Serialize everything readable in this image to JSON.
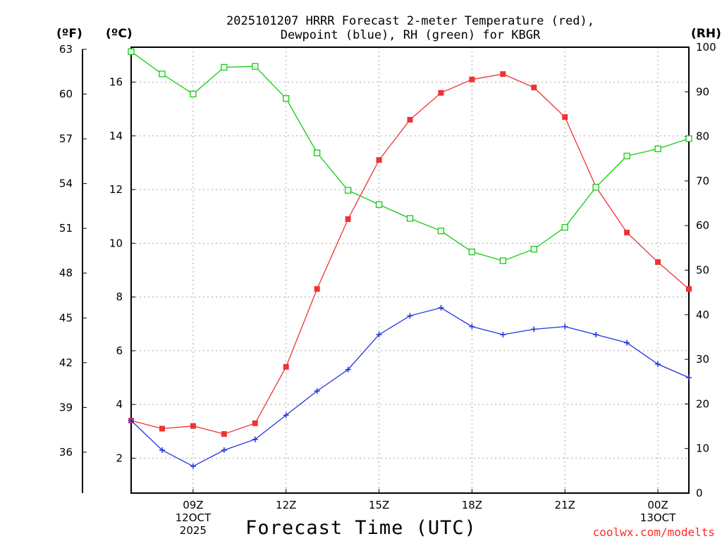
{
  "chart_data": {
    "type": "line",
    "title_lines": [
      "2025101207 HRRR Forecast 2-meter Temperature (red),",
      "Dewpoint (blue), RH (green) for KBGR"
    ],
    "xlabel": "Forecast Time (UTC)",
    "credit": "coolwx.com/modelts",
    "units": {
      "fahrenheit": "(ºF)",
      "celsius": "(ºC)",
      "rh": "(RH)"
    },
    "x": [
      7,
      8,
      9,
      10,
      11,
      12,
      13,
      14,
      15,
      16,
      17,
      18,
      19,
      20,
      21,
      22,
      23,
      24,
      25
    ],
    "xlim": [
      7,
      25
    ],
    "x_ticks": [
      {
        "x": 9,
        "lines": [
          "09Z",
          "12OCT",
          "2025"
        ]
      },
      {
        "x": 12,
        "lines": [
          "12Z"
        ]
      },
      {
        "x": 15,
        "lines": [
          "15Z"
        ]
      },
      {
        "x": 18,
        "lines": [
          "18Z"
        ]
      },
      {
        "x": 21,
        "lines": [
          "21Z"
        ]
      },
      {
        "x": 24,
        "lines": [
          "00Z",
          "13OCT"
        ]
      }
    ],
    "y_celsius": {
      "lim": [
        0.7,
        17.3
      ],
      "ticks": [
        2,
        4,
        6,
        8,
        10,
        12,
        14,
        16
      ]
    },
    "y_fahrenheit": {
      "ticks": [
        36,
        39,
        42,
        45,
        48,
        51,
        54,
        57,
        60,
        63
      ]
    },
    "y_rh": {
      "lim": [
        0,
        100
      ],
      "ticks": [
        0,
        10,
        20,
        30,
        40,
        50,
        60,
        70,
        80,
        90,
        100
      ]
    },
    "series": [
      {
        "name": "Temperature",
        "axis": "celsius",
        "color": "#ee3333",
        "marker": "filled-square",
        "values": [
          3.4,
          3.1,
          3.2,
          2.9,
          3.3,
          5.4,
          8.3,
          10.9,
          13.1,
          14.6,
          15.6,
          16.1,
          16.3,
          15.8,
          14.7,
          12.1,
          10.4,
          9.3,
          8.3
        ]
      },
      {
        "name": "Dewpoint",
        "axis": "celsius",
        "color": "#2233dd",
        "marker": "plus",
        "values": [
          3.4,
          2.3,
          1.7,
          2.3,
          2.7,
          3.6,
          4.5,
          5.3,
          6.6,
          7.3,
          7.6,
          6.9,
          6.6,
          6.8,
          6.9,
          6.6,
          6.3,
          5.5,
          5.0
        ]
      },
      {
        "name": "RH",
        "axis": "rh",
        "color": "#11cc11",
        "marker": "open-square",
        "values": [
          99,
          94,
          89.5,
          95.5,
          95.7,
          88.5,
          76.3,
          67.9,
          64.7,
          61.6,
          58.8,
          54.1,
          52.1,
          54.7,
          59.6,
          68.6,
          75.6,
          77.2,
          79.5
        ]
      }
    ]
  }
}
